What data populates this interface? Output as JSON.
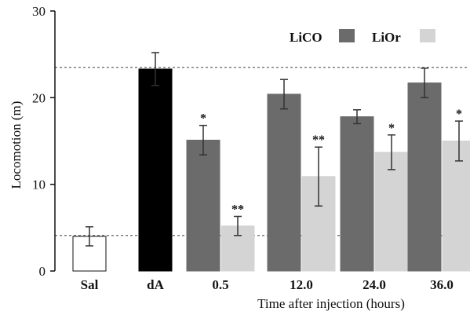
{
  "chart_data": {
    "type": "bar",
    "xlabel": "Time after injection (hours)",
    "ylabel": "Locomotion (m)",
    "ylim": [
      0,
      30
    ],
    "yticks": [
      "0",
      "10",
      "20",
      "30"
    ],
    "grid": false,
    "legend_position": "top-right",
    "reference_lines": [
      23.5,
      4.1
    ],
    "controls": [
      {
        "category": "Sal",
        "value": 4.0,
        "error": 1.1,
        "color": "#ffffff",
        "stroke": "#111111"
      },
      {
        "category": "dA",
        "value": 23.3,
        "error": 1.9,
        "color": "#000000",
        "stroke": "#000000"
      }
    ],
    "categories": [
      "0.5",
      "12.0",
      "24.0",
      "36.0"
    ],
    "series": [
      {
        "name": "LiCO",
        "color": "#6b6b6b",
        "values": [
          15.1,
          20.4,
          17.8,
          21.7
        ],
        "errors": [
          1.7,
          1.7,
          0.8,
          1.7
        ],
        "significance": [
          "*",
          "",
          "",
          ""
        ]
      },
      {
        "name": "LiOr",
        "color": "#d4d4d4",
        "values": [
          5.2,
          10.9,
          13.7,
          15.0
        ],
        "errors": [
          1.1,
          3.4,
          2.0,
          2.3
        ],
        "significance": [
          "**",
          "**",
          "*",
          "*"
        ]
      }
    ]
  }
}
